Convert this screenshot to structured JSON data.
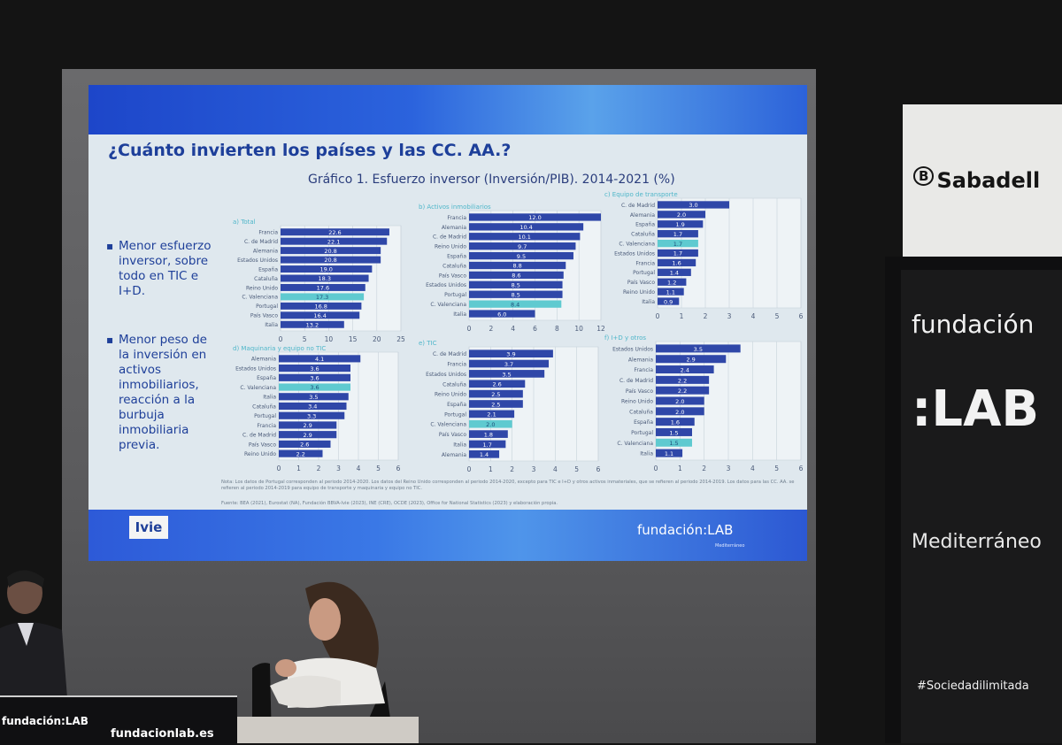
{
  "slide": {
    "title": "¿Cuánto invierten los países y las CC. AA.?",
    "chart_title": "Gráfico 1. Esfuerzo inversor (Inversión/PIB). 2014-2021 (%)",
    "bullets": [
      {
        "marker": "▪",
        "text": "Menor esfuerzo inversor, sobre todo en TIC e I+D."
      },
      {
        "marker": "▪",
        "text": "Menor peso de la inversión en activos inmobiliarios, reacción a la burbuja inmobiliaria previa."
      }
    ],
    "notes": "Nota: Los datos de Portugal corresponden al periodo 2014-2020. Los datos del Reino Unido corresponden al periodo 2014-2020, excepto para TIC e I+D y otros activos inmateriales, que se refieren al periodo 2014-2019. Los datos para las CC. AA. se refieren al periodo 2014-2019 para equipo de transporte y maquinaria y equipo no TIC.",
    "source": "Fuente: BEA (2021), Eurostat (NA), Fundación BBVA-Ivie (2023), INE (CRE), OCDE (2023), Office for National Statistics (2023) y elaboración propia.",
    "footer_left_logo": "Ivie",
    "footer_right_logo": "fundación:LAB",
    "footer_right_sub": "Mediterráneo"
  },
  "colors": {
    "bar": "#2f47a8",
    "highlight": "#5fcad0",
    "label": "#4a5a78",
    "panel_title": "#4fb6c9"
  },
  "chart_data": [
    {
      "type": "bar",
      "orientation": "horizontal",
      "title": "a) Total",
      "categories": [
        "Francia",
        "C. de Madrid",
        "Alemania",
        "Estados Unidos",
        "España",
        "Cataluña",
        "Reino Unido",
        "C. Valenciana",
        "Portugal",
        "País Vasco",
        "Italia"
      ],
      "values": [
        22.6,
        22.1,
        20.8,
        20.8,
        19.0,
        18.3,
        17.6,
        17.3,
        16.8,
        16.4,
        13.2
      ],
      "highlight": "C. Valenciana",
      "xlim": [
        0,
        25
      ],
      "ticks": [
        0,
        5,
        10,
        15,
        20,
        25
      ]
    },
    {
      "type": "bar",
      "orientation": "horizontal",
      "title": "b) Activos inmobiliarios",
      "categories": [
        "Francia",
        "Alemania",
        "C. de Madrid",
        "Reino Unido",
        "España",
        "Cataluña",
        "País Vasco",
        "Estados Unidos",
        "Portugal",
        "C. Valenciana",
        "Italia"
      ],
      "values": [
        12.0,
        10.4,
        10.1,
        9.7,
        9.5,
        8.8,
        8.6,
        8.5,
        8.5,
        8.4,
        6.0
      ],
      "highlight": "C. Valenciana",
      "xlim": [
        0,
        12
      ],
      "ticks": [
        0,
        2,
        4,
        6,
        8,
        10,
        12
      ]
    },
    {
      "type": "bar",
      "orientation": "horizontal",
      "title": "c) Equipo de transporte",
      "categories": [
        "C. de Madrid",
        "Alemania",
        "España",
        "Cataluña",
        "C. Valenciana",
        "Estados Unidos",
        "Francia",
        "Portugal",
        "País Vasco",
        "Reino Unido",
        "Italia"
      ],
      "values": [
        3.0,
        2.0,
        1.9,
        1.7,
        1.7,
        1.7,
        1.6,
        1.4,
        1.2,
        1.1,
        0.9
      ],
      "highlight": "C. Valenciana",
      "xlim": [
        0,
        6
      ],
      "ticks": [
        0,
        1,
        2,
        3,
        4,
        5,
        6
      ]
    },
    {
      "type": "bar",
      "orientation": "horizontal",
      "title": "d) Maquinaria y equipo no TIC",
      "categories": [
        "Alemania",
        "Estados Unidos",
        "España",
        "C. Valenciana",
        "Italia",
        "Cataluña",
        "Portugal",
        "Francia",
        "C. de Madrid",
        "País Vasco",
        "Reino Unido"
      ],
      "values": [
        4.1,
        3.6,
        3.6,
        3.6,
        3.5,
        3.4,
        3.3,
        2.9,
        2.9,
        2.6,
        2.2
      ],
      "highlight": "C. Valenciana",
      "xlim": [
        0,
        6
      ],
      "ticks": [
        0,
        1,
        2,
        3,
        4,
        5,
        6
      ]
    },
    {
      "type": "bar",
      "orientation": "horizontal",
      "title": "e) TIC",
      "categories": [
        "C. de Madrid",
        "Francia",
        "Estados Unidos",
        "Cataluña",
        "Reino Unido",
        "España",
        "Portugal",
        "C. Valenciana",
        "País Vasco",
        "Italia",
        "Alemania"
      ],
      "values": [
        3.9,
        3.7,
        3.5,
        2.6,
        2.5,
        2.5,
        2.1,
        2.0,
        1.8,
        1.7,
        1.4
      ],
      "highlight": "C. Valenciana",
      "xlim": [
        0,
        6
      ],
      "ticks": [
        0,
        1,
        2,
        3,
        4,
        5,
        6
      ]
    },
    {
      "type": "bar",
      "orientation": "horizontal",
      "title": "f) I+D y otros",
      "categories": [
        "Estados Unidos",
        "Alemania",
        "Francia",
        "C. de Madrid",
        "País Vasco",
        "Reino Unido",
        "Cataluña",
        "España",
        "Portugal",
        "C. Valenciana",
        "Italia"
      ],
      "values": [
        3.5,
        2.9,
        2.4,
        2.2,
        2.2,
        2.0,
        2.0,
        1.6,
        1.5,
        1.5,
        1.1
      ],
      "highlight": "C. Valenciana",
      "xlim": [
        0,
        6
      ],
      "ticks": [
        0,
        1,
        2,
        3,
        4,
        5,
        6
      ]
    }
  ],
  "room": {
    "sponsor_sign": "Sabadell",
    "sponsor_mark": "B",
    "banner_line1": "fundación",
    "banner_line2": ":LAB",
    "banner_line3": "Mediterráneo",
    "banner_hashtag": "#Sociedadilimitada",
    "table_logo": "fundación:LAB",
    "table_url": "fundacionlab.es"
  }
}
